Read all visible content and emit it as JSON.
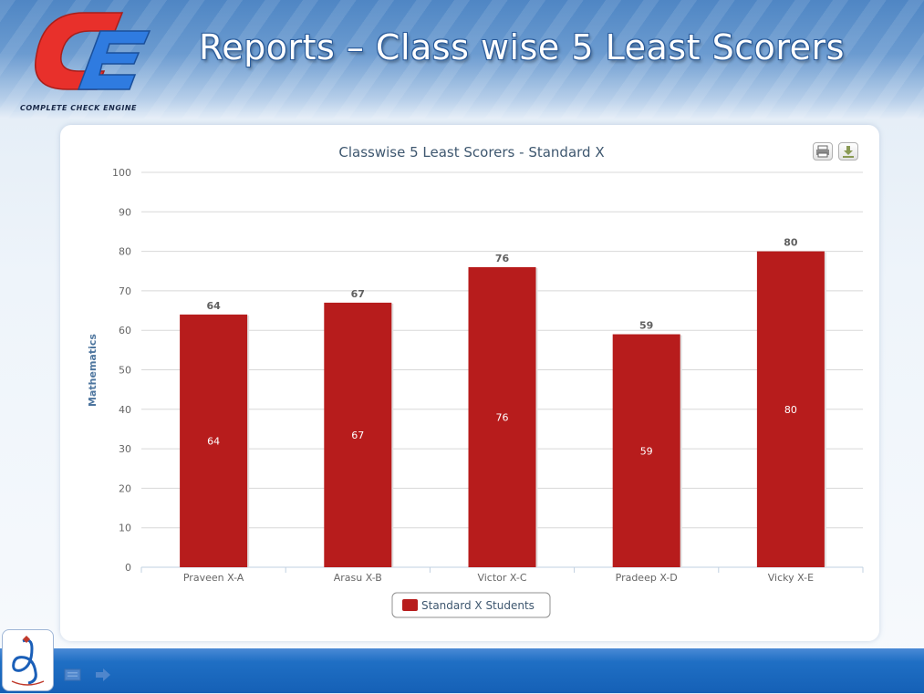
{
  "header": {
    "title": "Reports – Class wise 5 Least Scorers",
    "logo_caption": "COMPLETE CHECK ENGINE"
  },
  "toolbar": {
    "print_icon": "print-icon",
    "download_icon": "download-icon"
  },
  "footer": {
    "nav_icons": [
      "slides-icon",
      "next-arrow-icon"
    ]
  },
  "colors": {
    "bar": "#b71c1c",
    "title_text": "#3e576f",
    "axis_label": "#4d759e"
  },
  "chart_data": {
    "type": "bar",
    "title": "Classwise 5 Least Scorers - Standard X",
    "categories": [
      "Praveen X-A",
      "Arasu X-B",
      "Victor X-C",
      "Pradeep X-D",
      "Vicky X-E"
    ],
    "series": [
      {
        "name": "Standard X Students",
        "values": [
          64,
          67,
          76,
          59,
          80
        ],
        "color": "#b71c1c"
      }
    ],
    "xlabel": "",
    "ylabel": "Mathematics",
    "ylim": [
      0,
      100
    ],
    "yticks": [
      0,
      10,
      20,
      30,
      40,
      50,
      60,
      70,
      80,
      90,
      100
    ],
    "grid": true,
    "legend": "bottom-center",
    "data_labels": "above and inside"
  }
}
